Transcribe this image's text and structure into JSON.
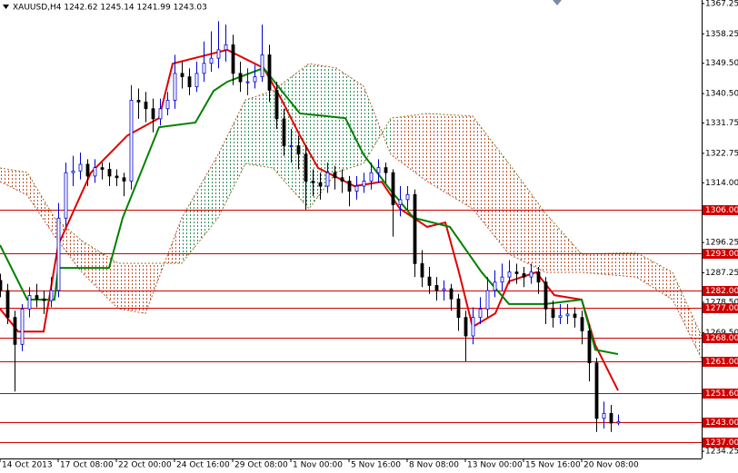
{
  "chart_data": {
    "type": "candlestick",
    "title": "XAUUSD,H4 1242.62 1245.14 1241.99 1243.03",
    "up_color": "#0000d0",
    "down_color": "#000000",
    "x": [
      0,
      2,
      4,
      6,
      8,
      10,
      12,
      14,
      16,
      18,
      20,
      22,
      24,
      26,
      28,
      30,
      32,
      34,
      36,
      38,
      40,
      42,
      44,
      46,
      48,
      50,
      52,
      54,
      56,
      58,
      60,
      62,
      64,
      66,
      68,
      70,
      72,
      74,
      76,
      78,
      80,
      82,
      84,
      86,
      88,
      90,
      92,
      94,
      96,
      98,
      100,
      102,
      104,
      106,
      108,
      110,
      112,
      114,
      116,
      118,
      120,
      122,
      124,
      126,
      128,
      130,
      132,
      134,
      136,
      138,
      140,
      142,
      144,
      146,
      148,
      150,
      152,
      154,
      156,
      158,
      160,
      162,
      164,
      166,
      168,
      170
    ],
    "open": [
      1285,
      1282,
      1274,
      1266,
      1276.5,
      1280.5,
      1279.5,
      1279,
      1282,
      1303.5,
      1317,
      1317.5,
      1319.5,
      1316,
      1318.5,
      1318,
      1316,
      1315.5,
      1314.5,
      1338.5,
      1338,
      1336,
      1333,
      1336,
      1338.5,
      1346.5,
      1345.5,
      1342.5,
      1346.5,
      1349.5,
      1351,
      1353.5,
      1355,
      1346.5,
      1344,
      1344,
      1345.5,
      1352,
      1341.5,
      1333,
      1325,
      1325,
      1322.5,
      1314.5,
      1314,
      1313,
      1317,
      1315.5,
      1314.5,
      1311.5,
      1313,
      1314.5,
      1317,
      1318.5,
      1317,
      1307.5,
      1309,
      1310.5,
      1290,
      1286,
      1283.5,
      1282,
      1282.5,
      1279.5,
      1274,
      1268.5,
      1274,
      1276.5,
      1282,
      1284.5,
      1286,
      1287.5,
      1287,
      1286,
      1287.5,
      1284.5,
      1276.5,
      1274,
      1274.5,
      1275,
      1274,
      1270,
      1260.5,
      1244,
      1245.5,
      1242.62
    ],
    "high": [
      1287,
      1284,
      1276,
      1278,
      1283,
      1284,
      1282,
      1286,
      1308,
      1320,
      1322,
      1323,
      1321,
      1321,
      1320,
      1320,
      1318,
      1317,
      1343,
      1342,
      1341,
      1339,
      1339,
      1341,
      1352,
      1350,
      1348,
      1350,
      1356,
      1359,
      1362,
      1361,
      1358,
      1350,
      1348,
      1349,
      1361,
      1355,
      1344,
      1336,
      1330,
      1328,
      1325,
      1318,
      1317,
      1320,
      1319,
      1318,
      1316,
      1316,
      1317,
      1320,
      1321,
      1320,
      1318,
      1313,
      1313,
      1312,
      1294,
      1289,
      1286,
      1285,
      1284,
      1281,
      1276,
      1277,
      1280,
      1286,
      1288,
      1290,
      1291,
      1290,
      1289,
      1290,
      1289,
      1286,
      1279,
      1278,
      1278,
      1277,
      1276,
      1272,
      1262,
      1249,
      1248,
      1245.14
    ],
    "low": [
      1280,
      1272,
      1252,
      1264,
      1274,
      1277,
      1275,
      1277,
      1280,
      1301,
      1313,
      1315,
      1313,
      1314,
      1315,
      1313,
      1313,
      1310,
      1312,
      1333,
      1332,
      1329,
      1331,
      1334,
      1336,
      1342,
      1340,
      1341,
      1344,
      1347,
      1348,
      1350,
      1343,
      1341,
      1340,
      1342,
      1344,
      1338,
      1330,
      1322,
      1320,
      1318,
      1306,
      1310,
      1309,
      1311,
      1312,
      1311,
      1307,
      1309,
      1311,
      1312,
      1314,
      1314,
      1298,
      1304,
      1306,
      1286,
      1283,
      1281,
      1279,
      1279,
      1276,
      1270,
      1261,
      1266,
      1272,
      1274,
      1280,
      1282,
      1284,
      1284,
      1283,
      1284,
      1281,
      1272,
      1271,
      1272,
      1272,
      1271,
      1266,
      1255,
      1240,
      1241,
      1240,
      1241.99
    ],
    "close": [
      1282,
      1274,
      1266,
      1276.5,
      1280.5,
      1279.5,
      1279,
      1282,
      1303.5,
      1317,
      1317.5,
      1319.5,
      1316,
      1318.5,
      1318,
      1316,
      1315.5,
      1314.5,
      1338.5,
      1338,
      1336,
      1333,
      1336,
      1338.5,
      1346.5,
      1345.5,
      1342.5,
      1346.5,
      1349.5,
      1351,
      1353.5,
      1355,
      1346.5,
      1344,
      1344,
      1345.5,
      1352,
      1341.5,
      1333,
      1325,
      1325,
      1322.5,
      1314.5,
      1314,
      1313,
      1317,
      1315.5,
      1314.5,
      1311.5,
      1313,
      1314.5,
      1317,
      1318.5,
      1317,
      1307.5,
      1309,
      1310.5,
      1290,
      1286,
      1283.5,
      1282,
      1282.5,
      1279.5,
      1274,
      1268.5,
      1274,
      1276.5,
      1282,
      1284.5,
      1286,
      1287.5,
      1287,
      1286,
      1287.5,
      1284.5,
      1276.5,
      1274,
      1274.5,
      1275,
      1274,
      1270,
      1260.5,
      1244,
      1245.5,
      1242.62,
      1243.03
    ],
    "lines": [
      {
        "color": "#e00000",
        "x": [
          0,
          5,
          12,
          16,
          25,
          35,
          43.75,
          47.5,
          62.5,
          72.5,
          77.5,
          82.5,
          87.5,
          92.5,
          97.5,
          105,
          110,
          113.75,
          117.5,
          122.5,
          126.25,
          130,
          136.25,
          140,
          147.5,
          152.5,
          160,
          163.75,
          170
        ],
        "values": [
          1276.6,
          1269.8,
          1269.8,
          1295.5,
          1317.0,
          1328.0,
          1333.2,
          1349.4,
          1353.5,
          1348.1,
          1338.6,
          1328.0,
          1318.4,
          1315.7,
          1313.0,
          1314.3,
          1306.3,
          1303.6,
          1300.9,
          1302.2,
          1287.4,
          1271.2,
          1275.2,
          1284.7,
          1287.4,
          1280.6,
          1279.3,
          1265.8,
          1252.3
        ]
      },
      {
        "color": "#008000",
        "x": [
          0,
          7.5,
          15,
          16,
          30,
          33.75,
          43.75,
          53.75,
          58.75,
          62.5,
          72.5,
          77.5,
          82.5,
          95,
          100,
          107.5,
          113.75,
          123.75,
          132.5,
          140,
          150,
          160,
          163.75,
          170
        ],
        "values": [
          1295.5,
          1279.3,
          1279.3,
          1288.7,
          1288.7,
          1303.6,
          1330.5,
          1331.9,
          1341.3,
          1344.0,
          1348.1,
          1341.3,
          1334.6,
          1333.2,
          1322.4,
          1311.7,
          1303.6,
          1300.9,
          1287.4,
          1278.0,
          1278.0,
          1279.3,
          1264.4,
          1263.1
        ]
      }
    ],
    "cloud": {
      "x": [
        0,
        7.5,
        15,
        22.5,
        32.5,
        40,
        50,
        60,
        67.5,
        75,
        85,
        92.5,
        100,
        107.5,
        117.5,
        130,
        140,
        150,
        160,
        175,
        185,
        193
      ],
      "span_a": [
        1314.4,
        1310.3,
        1298.2,
        1287.4,
        1276.6,
        1275.2,
        1303.6,
        1322.4,
        1338.6,
        1341.3,
        1349.4,
        1348.1,
        1342.7,
        1322.4,
        1314.4,
        1306.3,
        1292.8,
        1287.4,
        1287.4,
        1286.0,
        1279.3,
        1261.7
      ],
      "span_b": [
        1318.4,
        1317.1,
        1303.6,
        1296.8,
        1290.1,
        1290.1,
        1290.1,
        1303.6,
        1319.7,
        1318.4,
        1306.3,
        1317.1,
        1319.7,
        1333.2,
        1334.6,
        1333.8,
        1319.7,
        1305.0,
        1292.8,
        1293.3,
        1287.4,
        1268.5
      ],
      "bull_color": "#2e8b57",
      "bear_color": "#c0502a",
      "span_a_color": "#b5552f",
      "span_b_color": "#8a7a20"
    },
    "level_color": "#d00000",
    "levels": [
      {
        "value": 1306.0,
        "label": "1306.00"
      },
      {
        "value": 1293.0,
        "label": "1293.00"
      },
      {
        "value": 1282.0,
        "label": "1282.00"
      },
      {
        "value": 1277.0,
        "label": "1277.00"
      },
      {
        "value": 1268.0,
        "label": "1268.00"
      },
      {
        "value": 1261.0,
        "label": "1261.00"
      },
      {
        "value": 1251.6,
        "label": "1251.60"
      },
      {
        "value": 1243.0,
        "label": "1243.00"
      },
      {
        "value": 1237.0,
        "label": "1237.00"
      }
    ],
    "xlim": [
      0,
      193
    ],
    "ylim": [
      1232.1,
      1368.3
    ],
    "xticks": [
      {
        "value": 0,
        "label": "14 Oct 2013"
      },
      {
        "value": 16,
        "label": "17 Oct 08:00"
      },
      {
        "value": 32,
        "label": "22 Oct 00:00"
      },
      {
        "value": 48,
        "label": "24 Oct 16:00"
      },
      {
        "value": 64,
        "label": "29 Oct 08:00"
      },
      {
        "value": 80,
        "label": "1 Nov 00:00"
      },
      {
        "value": 96,
        "label": "5 Nov 16:00"
      },
      {
        "value": 112,
        "label": "8 Nov 08:00"
      },
      {
        "value": 128,
        "label": "13 Nov 00:00"
      },
      {
        "value": 144,
        "label": "15 Nov 16:00"
      },
      {
        "value": 160,
        "label": "20 Nov 08:00"
      }
    ],
    "yticks": [
      {
        "value": 1367.25,
        "label": "1367.25"
      },
      {
        "value": 1358.25,
        "label": "1358.25"
      },
      {
        "value": 1349.5,
        "label": "1349.50"
      },
      {
        "value": 1340.5,
        "label": "1340.50"
      },
      {
        "value": 1331.75,
        "label": "1331.75"
      },
      {
        "value": 1322.75,
        "label": "1322.75"
      },
      {
        "value": 1314.0,
        "label": "1314.00"
      },
      {
        "value": 1296.25,
        "label": "1296.25"
      },
      {
        "value": 1287.25,
        "label": "1287.25"
      },
      {
        "value": 1278.5,
        "label": "1278.50"
      },
      {
        "value": 1269.5,
        "label": "1269.50"
      },
      {
        "value": 1234.25,
        "label": "1234.25"
      }
    ]
  }
}
